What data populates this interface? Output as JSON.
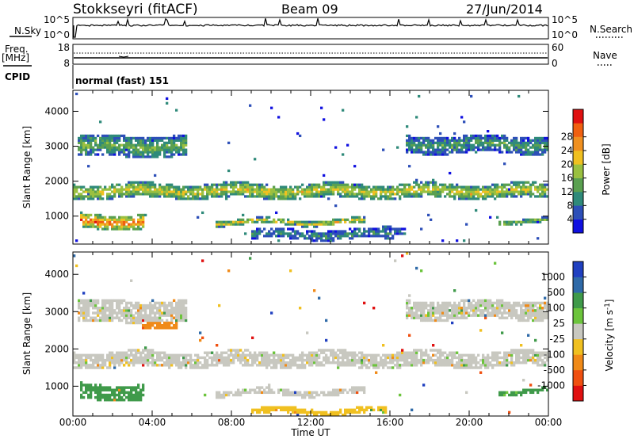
{
  "header": {
    "station": "Stokkseyri (fitACF)",
    "beam": "Beam 09",
    "date": "27/Jun/2014"
  },
  "nsky_panel": {
    "left_label": "N.Sky",
    "right_label": "N.Search",
    "left_ticks": [
      "10^5",
      "10^0"
    ],
    "right_ticks": [
      "10^5",
      "10^0"
    ]
  },
  "freq_panel": {
    "left_label": "Freq.",
    "left_unit": "[MHz]",
    "left_ticks": [
      "18",
      "8"
    ],
    "right_label": "Nave",
    "right_ticks": [
      "60",
      "0"
    ]
  },
  "cpid": {
    "label": "CPID",
    "value": "normal (fast) 151"
  },
  "chart_data": [
    {
      "type": "heatmap",
      "name": "power",
      "ylabel": "Slant Range [km]",
      "xlabel": "",
      "xlim_hours": [
        0,
        24
      ],
      "ylim_km": [
        200,
        4600
      ],
      "x_ticks": [
        "00:00",
        "04:00",
        "08:00",
        "12:00",
        "16:00",
        "20:00",
        "00:00"
      ],
      "y_ticks": [
        1000,
        2000,
        3000,
        4000
      ],
      "colorbar": {
        "label": "Power [dB]",
        "ticks": [
          "4",
          "8",
          "12",
          "16",
          "20",
          "24",
          "28"
        ],
        "colors": [
          "#1010e0",
          "#2d4fb8",
          "#2f8a7a",
          "#5aa050",
          "#9ac040",
          "#f0c020",
          "#f09020",
          "#f06010",
          "#e01010"
        ]
      },
      "bands": [
        {
          "t0": 0.0,
          "t1": 24.0,
          "r_center": 1720,
          "width": 380,
          "level": 0.58
        },
        {
          "t0": 0.3,
          "t1": 5.8,
          "r_center": 3000,
          "width": 550,
          "level": 0.42
        },
        {
          "t0": 0.4,
          "t1": 3.6,
          "r_center": 850,
          "width": 380,
          "level": 0.8
        },
        {
          "t0": 7.2,
          "t1": 14.8,
          "r_center": 830,
          "width": 150,
          "level": 0.62
        },
        {
          "t0": 9.0,
          "t1": 16.2,
          "r_center": 480,
          "width": 260,
          "level": 0.3
        },
        {
          "t0": 15.5,
          "t1": 16.8,
          "r_center": 600,
          "width": 200,
          "level": 0.25
        },
        {
          "t0": 16.8,
          "t1": 24.0,
          "r_center": 3050,
          "width": 450,
          "level": 0.35
        },
        {
          "t0": 21.5,
          "t1": 24.0,
          "r_center": 850,
          "width": 120,
          "level": 0.5
        }
      ]
    },
    {
      "type": "heatmap",
      "name": "velocity",
      "ylabel": "Slant Range [km]",
      "xlabel": "Time UT",
      "xlim_hours": [
        0,
        24
      ],
      "ylim_km": [
        200,
        4600
      ],
      "x_ticks": [
        "00:00",
        "04:00",
        "08:00",
        "12:00",
        "16:00",
        "20:00",
        "00:00"
      ],
      "y_ticks": [
        1000,
        2000,
        3000,
        4000
      ],
      "colorbar": {
        "label": "Velocity [m s^-1]",
        "ticks": [
          "1000",
          "500",
          "100",
          "25",
          "-25",
          "-100",
          "-500",
          "-1000"
        ],
        "colors": [
          "#2040c0",
          "#2f6aa8",
          "#3f9a4a",
          "#6cc43c",
          "#c8c8c0",
          "#f0c020",
          "#f08a18",
          "#f05010",
          "#e01010"
        ]
      },
      "bands": [
        {
          "t0": 0.0,
          "t1": 24.0,
          "r_center": 1720,
          "width": 380,
          "v": 0
        },
        {
          "t0": 0.3,
          "t1": 5.8,
          "r_center": 3000,
          "width": 550,
          "v": 0
        },
        {
          "t0": 0.4,
          "t1": 3.6,
          "r_center": 850,
          "width": 380,
          "v": 150
        },
        {
          "t0": 3.5,
          "t1": 5.3,
          "r_center": 2700,
          "width": 250,
          "v": -150
        },
        {
          "t0": 7.2,
          "t1": 14.8,
          "r_center": 830,
          "width": 150,
          "v": 0
        },
        {
          "t0": 9.0,
          "t1": 15.8,
          "r_center": 330,
          "width": 150,
          "v": -60
        },
        {
          "t0": 16.8,
          "t1": 24.0,
          "r_center": 3050,
          "width": 450,
          "v": 0
        },
        {
          "t0": 21.5,
          "t1": 24.0,
          "r_center": 850,
          "width": 120,
          "v": 120
        }
      ]
    }
  ]
}
